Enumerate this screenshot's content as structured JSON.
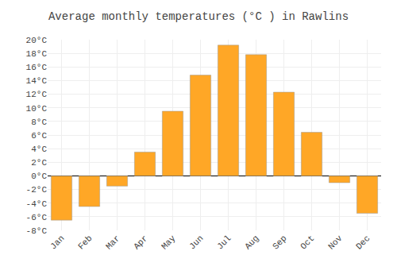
{
  "chart_data": {
    "type": "bar",
    "title": "Average monthly temperatures (°C ) in Rawlins",
    "categories": [
      "Jan",
      "Feb",
      "Mar",
      "Apr",
      "May",
      "Jun",
      "Jul",
      "Aug",
      "Sep",
      "Oct",
      "Nov",
      "Dec"
    ],
    "values": [
      -6.5,
      -4.5,
      -1.5,
      3.5,
      9.5,
      14.8,
      19.2,
      17.8,
      12.3,
      6.4,
      -1.0,
      -5.5
    ],
    "color": "#FFA726",
    "ylim": [
      -8,
      20
    ],
    "yticks": [
      {
        "value": -8,
        "label": "-8°C"
      },
      {
        "value": -6,
        "label": "-6°C"
      },
      {
        "value": -4,
        "label": "-4°C"
      },
      {
        "value": -2,
        "label": "-2°C"
      },
      {
        "value": 0,
        "label": "0°C"
      },
      {
        "value": 2,
        "label": "2°C"
      },
      {
        "value": 4,
        "label": "4°C"
      },
      {
        "value": 6,
        "label": "6°C"
      },
      {
        "value": 8,
        "label": "8°C"
      },
      {
        "value": 10,
        "label": "10°C"
      },
      {
        "value": 12,
        "label": "12°C"
      },
      {
        "value": 14,
        "label": "14°C"
      },
      {
        "value": 16,
        "label": "16°C"
      },
      {
        "value": 18,
        "label": "18°C"
      },
      {
        "value": 20,
        "label": "20°C"
      }
    ],
    "grid": true
  }
}
